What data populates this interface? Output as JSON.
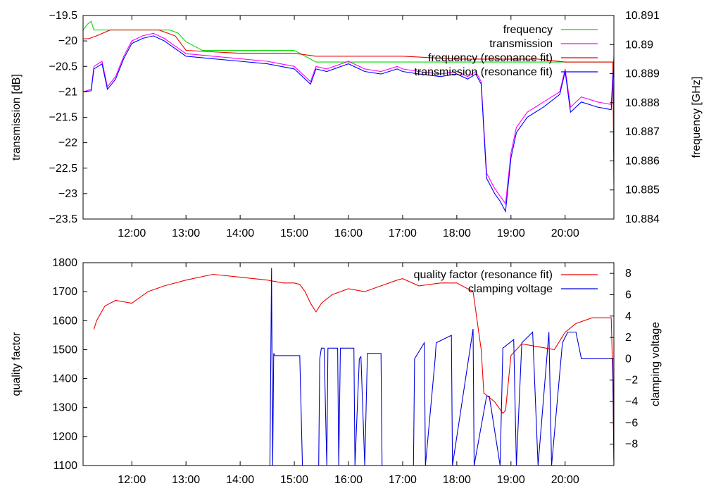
{
  "chart_data": [
    {
      "type": "line",
      "ylabel": "transmission [dB]",
      "y2label": "frequency [GHz]",
      "xlim": [
        11.1,
        20.9
      ],
      "ylim": [
        -23.5,
        -19.5
      ],
      "y2lim": [
        10.884,
        10.891
      ],
      "x_ticks": [
        12,
        13,
        14,
        15,
        16,
        17,
        18,
        19,
        20
      ],
      "x_tick_labels": [
        "12:00",
        "13:00",
        "14:00",
        "15:00",
        "16:00",
        "17:00",
        "18:00",
        "19:00",
        "20:00"
      ],
      "y_ticks": [
        -19.5,
        -20,
        -20.5,
        -21,
        -21.5,
        -22,
        -22.5,
        -23,
        -23.5
      ],
      "y_tick_labels": [
        "−19.5",
        "−20",
        "−20.5",
        "−21",
        "−21.5",
        "−22",
        "−22.5",
        "−23",
        "−23.5"
      ],
      "y2_ticks": [
        10.891,
        10.89,
        10.889,
        10.888,
        10.887,
        10.886,
        10.885,
        10.884
      ],
      "y2_tick_labels": [
        "10.891",
        "10.89",
        "10.889",
        "10.888",
        "10.887",
        "10.886",
        "10.885",
        "10.884"
      ],
      "legend_position": "top-right",
      "series": [
        {
          "name": "frequency",
          "axis": "y2",
          "color": "#00dd00",
          "x": [
            11.1,
            11.18,
            11.25,
            11.3,
            12.0,
            12.5,
            12.7,
            12.85,
            13.0,
            13.3,
            14.0,
            14.5,
            15.0,
            15.3,
            15.4,
            16.0,
            17.0,
            18.0,
            19.0,
            19.5,
            20.0,
            20.5,
            20.9
          ],
          "y": [
            10.8905,
            10.8907,
            10.8908,
            10.8905,
            10.8905,
            10.8905,
            10.8905,
            10.8904,
            10.8901,
            10.8898,
            10.8898,
            10.8898,
            10.8898,
            10.8895,
            10.8894,
            10.8894,
            10.8894,
            10.8894,
            10.8894,
            10.8894,
            10.8894,
            10.8894,
            10.8894
          ]
        },
        {
          "name": "transmission",
          "axis": "y",
          "color": "#ff00ff",
          "x": [
            11.1,
            11.25,
            11.3,
            11.45,
            11.55,
            11.7,
            11.85,
            12.0,
            12.2,
            12.4,
            12.6,
            12.8,
            13.0,
            13.5,
            14.0,
            14.5,
            15.0,
            15.3,
            15.4,
            15.6,
            16.0,
            16.3,
            16.6,
            16.9,
            17.0,
            17.3,
            17.7,
            18.0,
            18.2,
            18.35,
            18.45,
            18.55,
            18.7,
            18.8,
            18.9,
            19.0,
            19.1,
            19.3,
            19.6,
            19.9,
            20.0,
            20.1,
            20.3,
            20.6,
            20.85,
            20.9
          ],
          "y": [
            -21.0,
            -20.95,
            -20.5,
            -20.4,
            -20.9,
            -20.7,
            -20.3,
            -20.0,
            -19.9,
            -19.85,
            -19.95,
            -20.1,
            -20.25,
            -20.3,
            -20.35,
            -20.4,
            -20.5,
            -20.8,
            -20.5,
            -20.55,
            -20.4,
            -20.55,
            -20.6,
            -20.5,
            -20.55,
            -20.6,
            -20.65,
            -20.6,
            -20.7,
            -20.6,
            -20.8,
            -22.6,
            -22.9,
            -23.05,
            -23.2,
            -22.2,
            -21.7,
            -21.4,
            -21.2,
            -21.0,
            -20.55,
            -21.3,
            -21.1,
            -21.2,
            -21.25,
            -20.3
          ]
        },
        {
          "name": "frequency (resonance fit)",
          "axis": "y2",
          "color": "#ee0000",
          "x": [
            11.1,
            11.2,
            11.35,
            11.6,
            12.0,
            12.5,
            12.8,
            13.0,
            14.0,
            15.0,
            15.4,
            16.0,
            17.0,
            18.0,
            19.0,
            19.5,
            20.0,
            20.5,
            20.88,
            20.9
          ],
          "y": [
            10.8902,
            10.8902,
            10.8903,
            10.8905,
            10.8905,
            10.8905,
            10.8903,
            10.8898,
            10.8897,
            10.8897,
            10.8896,
            10.8896,
            10.8896,
            10.8895,
            10.8895,
            10.8895,
            10.8894,
            10.8894,
            10.8894,
            10.8852
          ]
        },
        {
          "name": "transmission (resonance fit)",
          "axis": "y",
          "color": "#0000ff",
          "x": [
            11.1,
            11.25,
            11.3,
            11.45,
            11.55,
            11.7,
            11.85,
            12.0,
            12.2,
            12.4,
            12.6,
            12.8,
            13.0,
            13.5,
            14.0,
            14.5,
            15.0,
            15.3,
            15.4,
            15.6,
            16.0,
            16.3,
            16.6,
            16.9,
            17.0,
            17.3,
            17.7,
            18.0,
            18.2,
            18.35,
            18.45,
            18.55,
            18.7,
            18.8,
            18.9,
            19.0,
            19.1,
            19.3,
            19.6,
            19.9,
            20.0,
            20.1,
            20.3,
            20.6,
            20.85,
            20.9
          ],
          "y": [
            -21.0,
            -20.98,
            -20.55,
            -20.45,
            -20.95,
            -20.75,
            -20.35,
            -20.05,
            -19.95,
            -19.9,
            -20.0,
            -20.15,
            -20.3,
            -20.35,
            -20.4,
            -20.45,
            -20.55,
            -20.85,
            -20.55,
            -20.6,
            -20.45,
            -20.6,
            -20.65,
            -20.55,
            -20.6,
            -20.65,
            -20.7,
            -20.65,
            -20.75,
            -20.65,
            -20.85,
            -22.7,
            -23.0,
            -23.15,
            -23.35,
            -22.3,
            -21.8,
            -21.5,
            -21.3,
            -21.05,
            -20.6,
            -21.4,
            -21.2,
            -21.3,
            -21.35,
            -20.4
          ]
        }
      ]
    },
    {
      "type": "line",
      "ylabel": "quality factor",
      "y2label": "clamping voltage",
      "xlim": [
        11.1,
        20.9
      ],
      "ylim": [
        1100,
        1800
      ],
      "y2lim": [
        -10,
        9
      ],
      "x_ticks": [
        12,
        13,
        14,
        15,
        16,
        17,
        18,
        19,
        20
      ],
      "x_tick_labels": [
        "12:00",
        "13:00",
        "14:00",
        "15:00",
        "16:00",
        "17:00",
        "18:00",
        "19:00",
        "20:00"
      ],
      "y_ticks": [
        1100,
        1200,
        1300,
        1400,
        1500,
        1600,
        1700,
        1800
      ],
      "y_tick_labels": [
        "1100",
        "1200",
        "1300",
        "1400",
        "1500",
        "1600",
        "1700",
        "1800"
      ],
      "y2_ticks": [
        8,
        6,
        4,
        2,
        0,
        -2,
        -4,
        -6,
        -8
      ],
      "y2_tick_labels": [
        "8",
        "6",
        "4",
        "2",
        "0",
        "−2",
        "−4",
        "−6",
        "−8"
      ],
      "legend_position": "top-right",
      "series": [
        {
          "name": "quality factor (resonance fit)",
          "axis": "y",
          "color": "#ee0000",
          "x": [
            11.3,
            11.35,
            11.5,
            11.7,
            12.0,
            12.3,
            12.6,
            13.0,
            13.5,
            14.0,
            14.5,
            14.8,
            15.0,
            15.1,
            15.2,
            15.3,
            15.4,
            15.5,
            15.7,
            16.0,
            16.3,
            16.6,
            16.9,
            17.0,
            17.3,
            17.7,
            18.0,
            18.3,
            18.45,
            18.5,
            18.7,
            18.85,
            18.9,
            19.0,
            19.2,
            19.5,
            19.8,
            20.0,
            20.2,
            20.5,
            20.85,
            20.88,
            20.9
          ],
          "y": [
            1570,
            1600,
            1650,
            1670,
            1660,
            1700,
            1720,
            1740,
            1760,
            1750,
            1740,
            1730,
            1730,
            1725,
            1700,
            1660,
            1630,
            1660,
            1690,
            1710,
            1700,
            1720,
            1740,
            1745,
            1720,
            1730,
            1730,
            1700,
            1500,
            1350,
            1320,
            1280,
            1290,
            1480,
            1520,
            1510,
            1500,
            1560,
            1590,
            1610,
            1610,
            1400,
            1120
          ]
        },
        {
          "name": "clamping voltage",
          "axis": "y2",
          "color": "#0000dd",
          "x": [
            14.55,
            14.58,
            14.6,
            14.62,
            14.64,
            14.66,
            14.7,
            15.1,
            15.15,
            15.17,
            15.45,
            15.47,
            15.5,
            15.55,
            15.6,
            15.62,
            15.8,
            15.82,
            15.85,
            15.9,
            16.1,
            16.12,
            16.2,
            16.23,
            16.3,
            16.35,
            16.4,
            16.6,
            16.62,
            17.2,
            17.22,
            17.4,
            17.42,
            17.6,
            17.62,
            17.9,
            17.92,
            18.3,
            18.32,
            18.55,
            18.6,
            18.8,
            18.85,
            19.05,
            19.1,
            19.2,
            19.4,
            19.5,
            19.7,
            19.75,
            19.95,
            20.05,
            20.2,
            20.3,
            20.88,
            20.9
          ],
          "y": [
            -10,
            8.5,
            -10,
            0.5,
            0.3,
            0.3,
            0.3,
            0.3,
            -10,
            -10,
            -10,
            0,
            1,
            1,
            -10,
            1,
            1,
            -10,
            1,
            1,
            1,
            -10,
            0,
            0.2,
            -10,
            0.5,
            0.5,
            0.5,
            -10,
            -10,
            0,
            1.5,
            -10,
            0,
            1.5,
            2.2,
            -10,
            2.8,
            -10,
            -3.5,
            -3.5,
            -10,
            1,
            1.8,
            -10,
            1.5,
            2.5,
            -10,
            2.5,
            -10,
            1.5,
            2.5,
            2.5,
            0,
            0,
            -10
          ]
        }
      ]
    }
  ]
}
